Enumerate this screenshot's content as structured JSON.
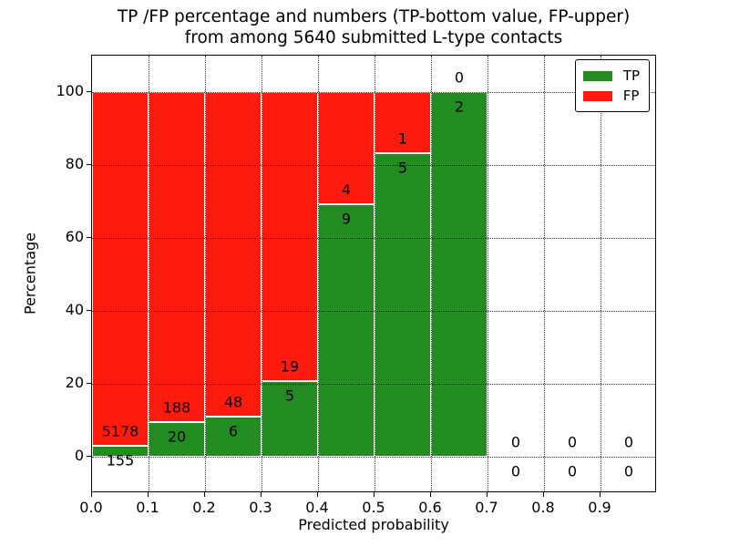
{
  "title": {
    "line1": "TP /FP percentage and numbers (TP-bottom value, FP-upper)",
    "line2": "from among 5640 submitted L-type contacts"
  },
  "axes": {
    "xlabel": "Predicted probability",
    "ylabel": "Percentage",
    "yticks": [
      0,
      20,
      40,
      60,
      80,
      100
    ],
    "xticks": [
      "0.0",
      "0.1",
      "0.2",
      "0.3",
      "0.4",
      "0.5",
      "0.6",
      "0.7",
      "0.8",
      "0.9"
    ]
  },
  "legend": [
    {
      "label": "TP",
      "color": "#228b22"
    },
    {
      "label": "FP",
      "color": "#ff1a0d"
    }
  ],
  "chart_data": {
    "type": "bar",
    "stacked": true,
    "normalization": "percent of contacts per bin",
    "title": "TP /FP percentage and numbers (TP-bottom value, FP-upper) from among 5640 submitted L-type contacts",
    "xlabel": "Predicted probability",
    "ylabel": "Percentage",
    "xlim": [
      0.0,
      1.0
    ],
    "ylim": [
      -10,
      110
    ],
    "grid": "dotted",
    "legend_position": "upper right",
    "total_contacts": 5640,
    "bin_width": 0.1,
    "bin_starts": [
      0.0,
      0.1,
      0.2,
      0.3,
      0.4,
      0.5,
      0.6,
      0.7,
      0.8,
      0.9
    ],
    "series": [
      {
        "name": "TP",
        "color": "#228b22",
        "counts": [
          155,
          20,
          6,
          5,
          9,
          5,
          2,
          0,
          0,
          0
        ]
      },
      {
        "name": "FP",
        "color": "#ff1a0d",
        "counts": [
          5178,
          188,
          48,
          19,
          4,
          1,
          0,
          0,
          0,
          0
        ]
      }
    ],
    "tp_percent_per_bin": [
      2.91,
      9.62,
      11.11,
      20.83,
      69.23,
      83.33,
      100.0,
      null,
      null,
      null
    ]
  }
}
